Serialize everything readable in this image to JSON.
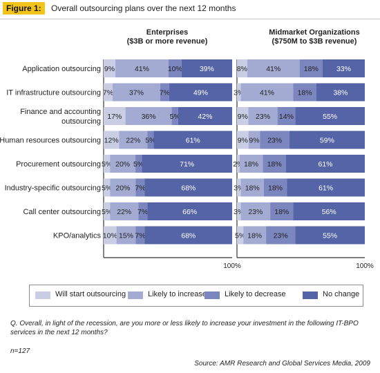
{
  "figure": {
    "tag": "Figure 1:",
    "title": "Overall outsourcing plans over the next 12 months"
  },
  "chart_data": {
    "type": "bar",
    "stacked": true,
    "orientation": "horizontal",
    "categories": [
      "Application outsourcing",
      "IT infrastructure outsourcing",
      "Finance and accounting outsourcing",
      "Human resources outsourcing",
      "Procurement outsourcing",
      "Industry-specific outsourcing",
      "Call center outsourcing",
      "KPO/analytics"
    ],
    "category_lines": [
      [
        "Application outsourcing"
      ],
      [
        "IT infrastructure outsourcing"
      ],
      [
        "Finance and accounting",
        "outsourcing"
      ],
      [
        "Human resources outsourcing"
      ],
      [
        "Procurement outsourcing"
      ],
      [
        "Industry-specific outsourcing"
      ],
      [
        "Call center outsourcing"
      ],
      [
        "KPO/analytics"
      ]
    ],
    "series_names": [
      "Will start outsourcing",
      "Likely to increase",
      "Likely to decrease",
      "No change"
    ],
    "series_colors": [
      "#c9cee4",
      "#a3abd2",
      "#7b85be",
      "#5464a6"
    ],
    "panels": [
      {
        "title_lines": [
          "Enterprises",
          "($3B or more revenue)"
        ],
        "axis_end_label": "100%",
        "xlim": [
          0,
          100
        ],
        "values": [
          [
            9,
            41,
            10,
            39
          ],
          [
            7,
            37,
            7,
            49
          ],
          [
            17,
            36,
            5,
            42
          ],
          [
            12,
            22,
            5,
            61
          ],
          [
            5,
            20,
            5,
            71
          ],
          [
            5,
            20,
            7,
            68
          ],
          [
            5,
            22,
            7,
            66
          ],
          [
            10,
            15,
            7,
            68
          ]
        ],
        "labels": [
          [
            "9%",
            "41%",
            "10%",
            "39%"
          ],
          [
            "7%",
            "37%",
            "7%",
            "49%"
          ],
          [
            "17%",
            "36%",
            "5%",
            "42%"
          ],
          [
            "12%",
            "22%",
            "5%",
            "61%"
          ],
          [
            "5%",
            "20%",
            "5%",
            "71%"
          ],
          [
            "5%",
            "20%",
            "7%",
            "68%"
          ],
          [
            "5%",
            "22%",
            "7%",
            "66%"
          ],
          [
            "10%",
            "15%",
            "7%",
            "68%"
          ]
        ]
      },
      {
        "title_lines": [
          "Midmarket Organizations",
          "($750M  to $3B revenue)"
        ],
        "axis_end_label": "100%",
        "xlim": [
          0,
          100
        ],
        "values": [
          [
            8,
            41,
            18,
            33
          ],
          [
            3,
            41,
            18,
            38
          ],
          [
            9,
            23,
            14,
            55
          ],
          [
            9,
            9,
            23,
            59
          ],
          [
            2,
            18,
            18,
            61
          ],
          [
            3,
            18,
            18,
            61
          ],
          [
            3,
            23,
            18,
            56
          ],
          [
            5,
            18,
            23,
            55
          ]
        ],
        "labels": [
          [
            "8%",
            "41%",
            "18%",
            "33%"
          ],
          [
            "3%",
            "41%",
            "18%",
            "38%"
          ],
          [
            "9%",
            "23%",
            "14%",
            "55%"
          ],
          [
            "9%",
            "9%",
            "23%",
            "59%"
          ],
          [
            "2%",
            "18%",
            "18%",
            "61%"
          ],
          [
            "3%",
            "18%",
            "18%",
            "61%"
          ],
          [
            "3%",
            "23%",
            "18%",
            "56%"
          ],
          [
            "5%",
            "18%",
            "23%",
            "55%"
          ]
        ]
      }
    ],
    "legend": [
      "Will start outsourcing",
      "Likely to increase",
      "Likely to decrease",
      "No change"
    ]
  },
  "footer": {
    "question": "Q. Overall, in light of the recession, are you more or less likely to increase your investment in the following IT-BPO services in the next 12 months?",
    "sample": "n=127",
    "source": "Source: AMR Research and Global Services Media, 2009"
  }
}
